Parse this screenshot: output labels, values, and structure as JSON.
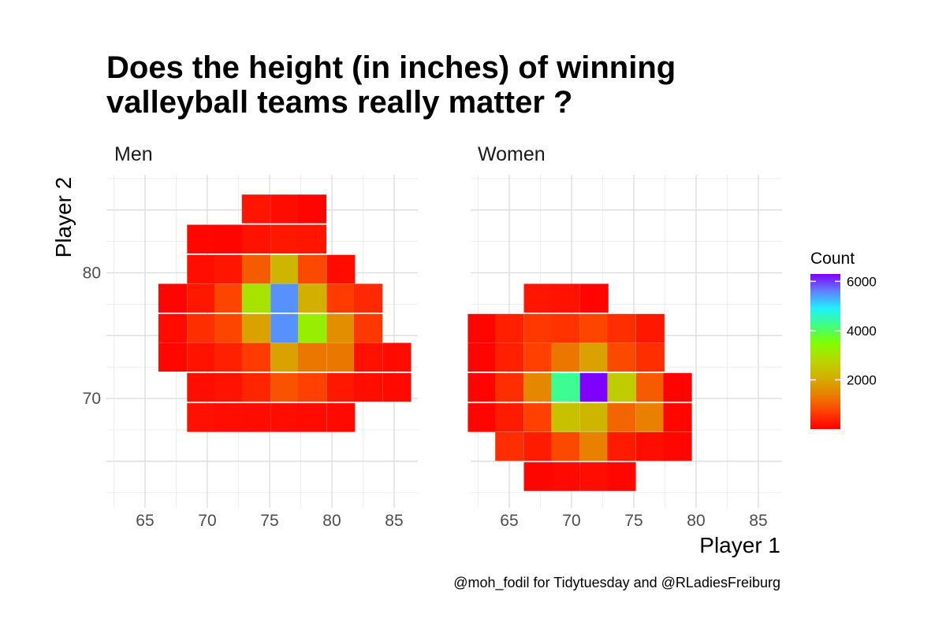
{
  "title_line1": "Does the height (in inches) of winning",
  "title_line2": "valleyball teams really matter ?",
  "caption": "@moh_fodil for Tidytuesday and @RLadiesFreiburg",
  "chart_data": {
    "type": "heatmap",
    "xlabel": "Player 1",
    "ylabel": "Player 2",
    "x_ticks": [
      65,
      70,
      75,
      80,
      85
    ],
    "y_ticks": [
      70,
      80
    ],
    "xlim": [
      61.9,
      86.9
    ],
    "ylim": [
      61.3,
      87.8
    ],
    "bin_width": 2.25,
    "panels": [
      {
        "name": "Men",
        "x_centers": [
          67.2,
          69.5,
          71.7,
          73.9,
          76.2,
          78.4,
          80.7,
          82.9,
          85.2
        ],
        "y_centers": [
          68.5,
          70.9,
          73.3,
          75.6,
          78.0,
          80.3,
          82.7,
          85.1
        ],
        "counts": [
          [
            null,
            180,
            150,
            130,
            140,
            120,
            100,
            null,
            null
          ],
          [
            null,
            150,
            200,
            400,
            900,
            700,
            250,
            150,
            100
          ],
          [
            80,
            200,
            350,
            650,
            1900,
            1300,
            1300,
            180,
            120
          ],
          [
            120,
            500,
            750,
            1900,
            5500,
            3200,
            1600,
            600,
            null
          ],
          [
            60,
            250,
            750,
            3000,
            5500,
            2100,
            650,
            450,
            null
          ],
          [
            null,
            150,
            230,
            1000,
            2200,
            800,
            120,
            null,
            null
          ],
          [
            null,
            80,
            60,
            200,
            250,
            230,
            null,
            null,
            null
          ],
          [
            null,
            null,
            null,
            230,
            130,
            50,
            null,
            null,
            null
          ]
        ]
      },
      {
        "name": "Women",
        "x_centers": [
          62.8,
          65.0,
          67.3,
          69.5,
          71.8,
          74.0,
          76.3,
          78.5
        ],
        "y_centers": [
          63.8,
          66.2,
          68.5,
          70.9,
          73.3,
          75.6,
          78.0
        ],
        "counts": [
          [
            null,
            null,
            50,
            100,
            150,
            70,
            null,
            null
          ],
          [
            null,
            500,
            300,
            800,
            1400,
            300,
            150,
            80
          ],
          [
            50,
            300,
            700,
            2400,
            2200,
            1100,
            1400,
            80
          ],
          [
            30,
            500,
            1500,
            4300,
            6300,
            2600,
            1000,
            30
          ],
          [
            40,
            350,
            700,
            1300,
            1900,
            800,
            500,
            null
          ],
          [
            60,
            350,
            600,
            550,
            750,
            500,
            250,
            null
          ],
          [
            null,
            null,
            230,
            200,
            40,
            null,
            null,
            null
          ]
        ]
      }
    ],
    "legend": {
      "title": "Count",
      "ticks": [
        2000,
        4000,
        6000
      ],
      "min": 0,
      "max": 6300,
      "colors": [
        "#ff0000",
        "#ff4000",
        "#e98000",
        "#d2b000",
        "#b8d800",
        "#80ff00",
        "#40ff80",
        "#20f0ff",
        "#6080ff",
        "#8000ff"
      ]
    }
  }
}
